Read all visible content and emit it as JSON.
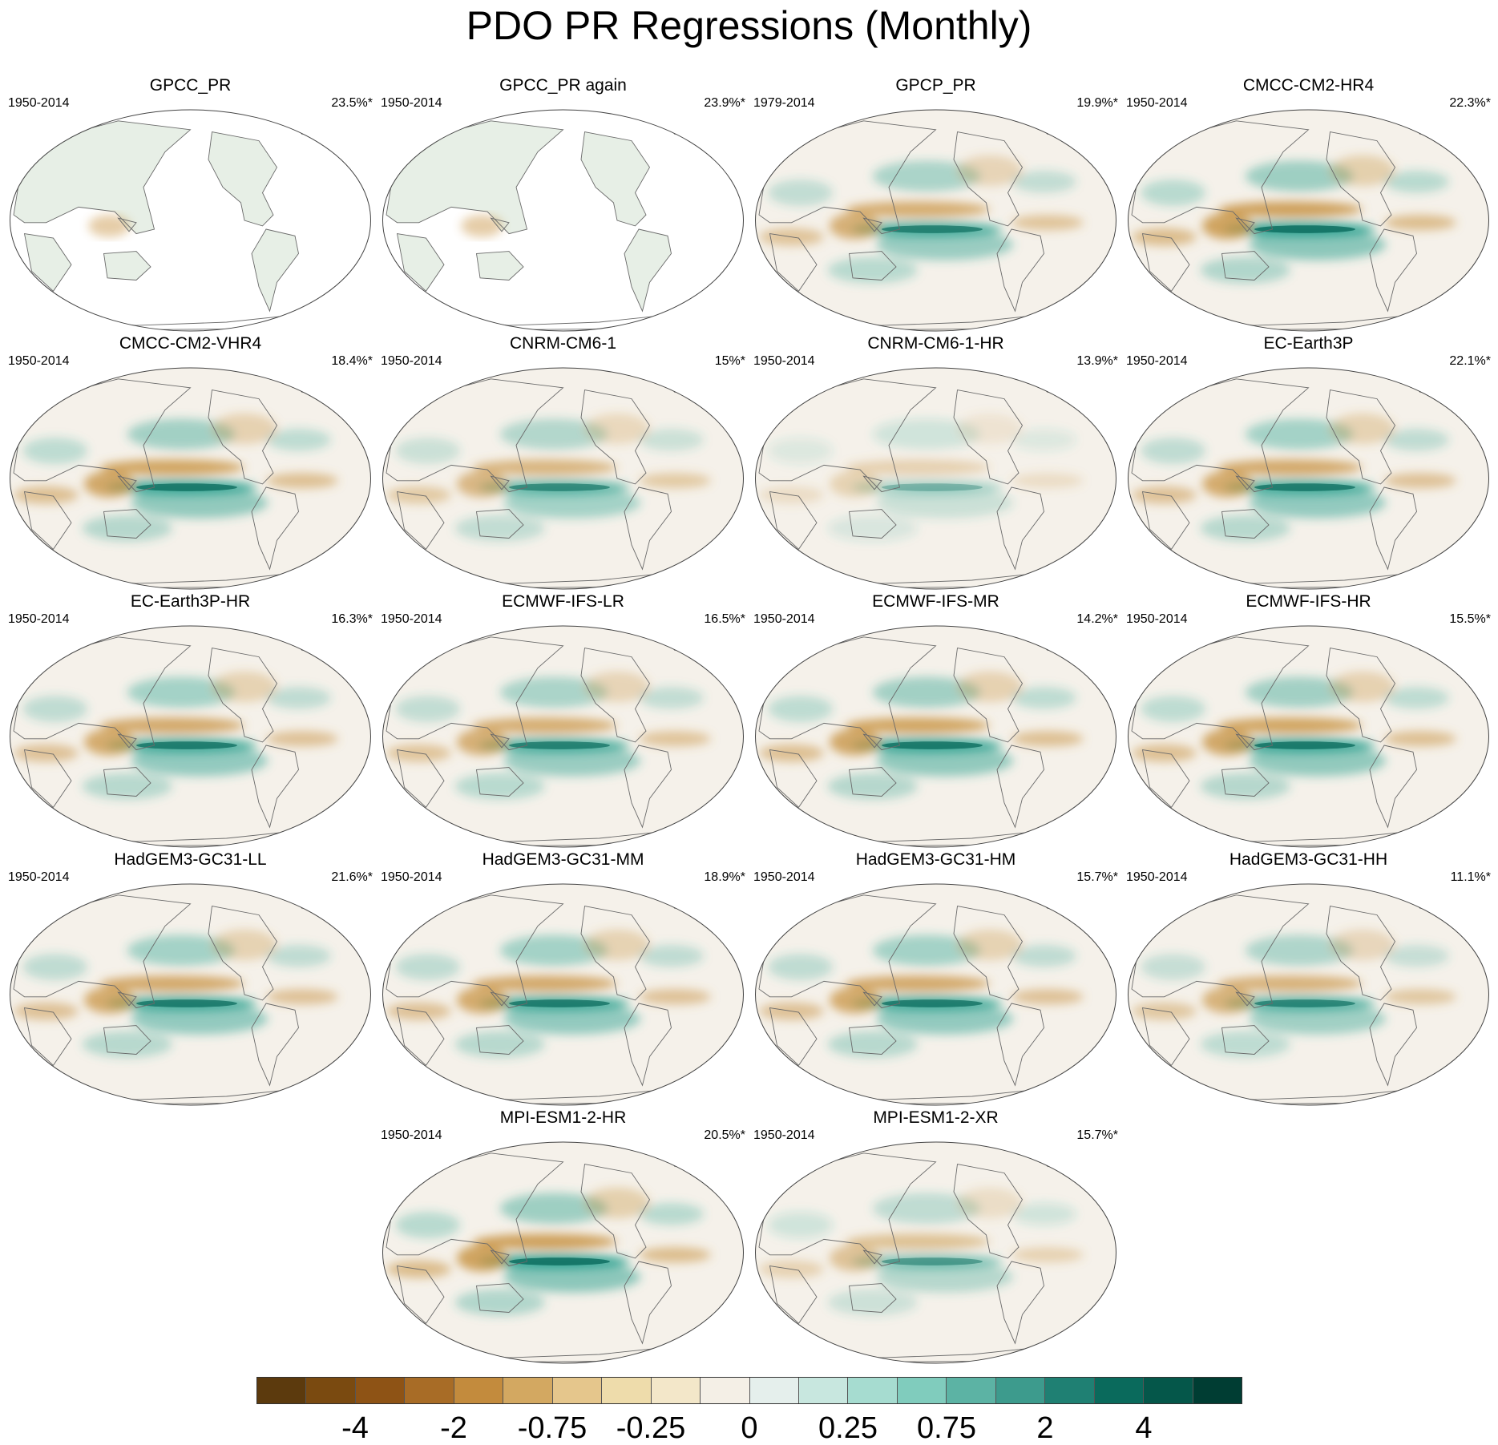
{
  "figure": {
    "title": "PDO PR Regressions (Monthly)"
  },
  "panels": [
    {
      "name": "GPCC_PR",
      "period": "1950-2014",
      "pct": "23.5%*",
      "land_only": true,
      "strength": 0.35
    },
    {
      "name": "GPCC_PR again",
      "period": "1950-2014",
      "pct": "23.9%*",
      "land_only": true,
      "strength": 0.35
    },
    {
      "name": "GPCP_PR",
      "period": "1979-2014",
      "pct": "19.9%*",
      "land_only": false,
      "strength": 0.85
    },
    {
      "name": "CMCC-CM2-HR4",
      "period": "1950-2014",
      "pct": "22.3%*",
      "land_only": false,
      "strength": 1.0
    },
    {
      "name": "CMCC-CM2-VHR4",
      "period": "1950-2014",
      "pct": "18.4%*",
      "land_only": false,
      "strength": 0.95
    },
    {
      "name": "CNRM-CM6-1",
      "period": "1950-2014",
      "pct": "15%*",
      "land_only": false,
      "strength": 0.75
    },
    {
      "name": "CNRM-CM6-1-HR",
      "period": "1950-2014",
      "pct": "13.9%*",
      "land_only": false,
      "strength": 0.4
    },
    {
      "name": "EC-Earth3P",
      "period": "1950-2014",
      "pct": "22.1%*",
      "land_only": false,
      "strength": 0.9
    },
    {
      "name": "EC-Earth3P-HR",
      "period": "1950-2014",
      "pct": "16.3%*",
      "land_only": false,
      "strength": 0.9
    },
    {
      "name": "ECMWF-IFS-LR",
      "period": "1950-2014",
      "pct": "16.5%*",
      "land_only": false,
      "strength": 0.85
    },
    {
      "name": "ECMWF-IFS-MR",
      "period": "1950-2014",
      "pct": "14.2%*",
      "land_only": false,
      "strength": 0.95
    },
    {
      "name": "ECMWF-IFS-HR",
      "period": "1950-2014",
      "pct": "15.5%*",
      "land_only": false,
      "strength": 0.95
    },
    {
      "name": "HadGEM3-GC31-LL",
      "period": "1950-2014",
      "pct": "21.6%*",
      "land_only": false,
      "strength": 0.9
    },
    {
      "name": "HadGEM3-GC31-MM",
      "period": "1950-2014",
      "pct": "18.9%*",
      "land_only": false,
      "strength": 0.9
    },
    {
      "name": "HadGEM3-GC31-HM",
      "period": "1950-2014",
      "pct": "15.7%*",
      "land_only": false,
      "strength": 0.9
    },
    {
      "name": "HadGEM3-GC31-HH",
      "period": "1950-2014",
      "pct": "11.1%*",
      "land_only": false,
      "strength": 0.8
    },
    {
      "name": "MPI-ESM1-2-HR",
      "period": "1950-2014",
      "pct": "20.5%*",
      "land_only": false,
      "strength": 1.0
    },
    {
      "name": "MPI-ESM1-2-XR",
      "period": "1950-2014",
      "pct": "15.7%*",
      "land_only": false,
      "strength": 0.6
    }
  ],
  "colorbar": {
    "colors": [
      "#5c3a0d",
      "#7a4a10",
      "#8e5315",
      "#a86c26",
      "#c38b3d",
      "#d3a861",
      "#e5c68c",
      "#eedcab",
      "#f3e7c9",
      "#f4efe6",
      "#e5efec",
      "#c8e7df",
      "#a6dcd0",
      "#80ccbd",
      "#5cb3a4",
      "#3d9b8d",
      "#1f8073",
      "#0a6a5c",
      "#05574a",
      "#003d33"
    ],
    "tick_labels": [
      "-4",
      "-2",
      "-0.75",
      "-0.25",
      "0",
      "0.25",
      "0.75",
      "2",
      "4"
    ]
  },
  "colors": {
    "ocean_base": "#f5f1ea",
    "coast": "#6a6a6a",
    "wet": "#33a493",
    "dry": "#c7913f"
  }
}
